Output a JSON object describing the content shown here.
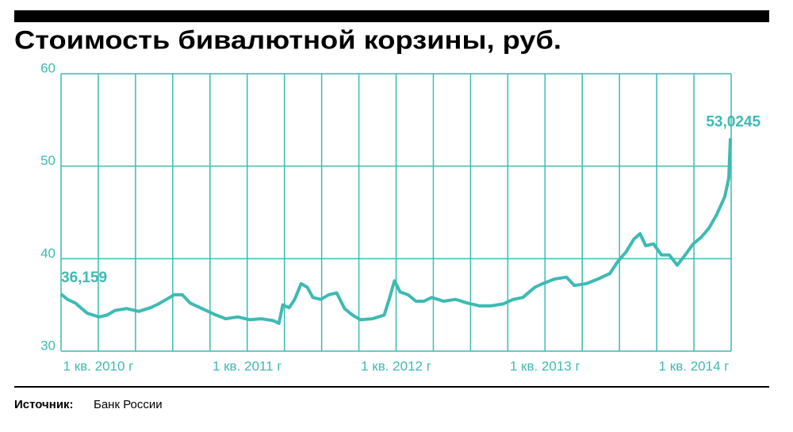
{
  "chart_data": {
    "type": "line",
    "title": "Стоимость бивалютной корзины, руб.",
    "source_label": "Источник:",
    "source": "Банк России",
    "xlim": [
      2009.75,
      2014.25
    ],
    "x_grid_step": 0.25,
    "xticks": [
      {
        "value": 2010,
        "label": "1 кв. 2010 г"
      },
      {
        "value": 2011,
        "label": "1 кв. 2011 г"
      },
      {
        "value": 2012,
        "label": "1 кв. 2012 г"
      },
      {
        "value": 2013,
        "label": "1 кв. 2013 г"
      },
      {
        "value": 2014,
        "label": "1 кв. 2014 г"
      }
    ],
    "ylim": [
      30,
      60
    ],
    "yticks": [
      30,
      40,
      50,
      60
    ],
    "grid": true,
    "series": [
      {
        "color": "#3dbab3",
        "x": [
          2009.75,
          2009.793,
          2009.846,
          2009.926,
          2010.005,
          2010.059,
          2010.112,
          2010.191,
          2010.271,
          2010.351,
          2010.404,
          2010.457,
          2010.511,
          2010.564,
          2010.617,
          2010.697,
          2010.777,
          2010.856,
          2010.936,
          2011.016,
          2011.096,
          2011.176,
          2011.213,
          2011.239,
          2011.282,
          2011.319,
          2011.362,
          2011.404,
          2011.441,
          2011.495,
          2011.548,
          2011.601,
          2011.654,
          2011.707,
          2011.761,
          2011.84,
          2011.92,
          2011.957,
          2011.989,
          2012.027,
          2012.08,
          2012.133,
          2012.186,
          2012.239,
          2012.319,
          2012.399,
          2012.479,
          2012.559,
          2012.638,
          2012.718,
          2012.787,
          2012.851,
          2012.931,
          2012.984,
          2013.064,
          2013.144,
          2013.197,
          2013.277,
          2013.356,
          2013.436,
          2013.489,
          2013.543,
          2013.596,
          2013.638,
          2013.676,
          2013.729,
          2013.782,
          2013.835,
          2013.888,
          2013.941,
          2013.995,
          2014.048,
          2014.101,
          2014.154,
          2014.207,
          2014.234,
          2014.245
        ],
        "values": [
          36.159,
          35.6,
          35.2,
          34.1,
          33.7,
          33.9,
          34.4,
          34.6,
          34.3,
          34.7,
          35.1,
          35.6,
          36.1,
          36.1,
          35.2,
          34.6,
          34.0,
          33.5,
          33.7,
          33.4,
          33.5,
          33.3,
          33.0,
          35.0,
          34.7,
          35.6,
          37.3,
          36.9,
          35.8,
          35.6,
          36.1,
          36.3,
          34.6,
          33.9,
          33.4,
          33.5,
          33.9,
          35.8,
          37.6,
          36.4,
          36.1,
          35.4,
          35.4,
          35.8,
          35.4,
          35.6,
          35.2,
          34.9,
          34.9,
          35.1,
          35.6,
          35.8,
          36.9,
          37.3,
          37.8,
          38.0,
          37.1,
          37.3,
          37.8,
          38.4,
          39.7,
          40.7,
          42.1,
          42.7,
          41.4,
          41.6,
          40.4,
          40.4,
          39.3,
          40.4,
          41.6,
          42.3,
          43.3,
          44.8,
          46.7,
          48.7,
          53.0245
        ],
        "value_labels": [
          "36,159",
          null,
          null,
          null,
          null,
          null,
          null,
          null,
          null,
          null,
          null,
          null,
          null,
          null,
          null,
          null,
          null,
          null,
          null,
          null,
          null,
          null,
          null,
          null,
          null,
          null,
          null,
          null,
          null,
          null,
          null,
          null,
          null,
          null,
          null,
          null,
          null,
          null,
          null,
          null,
          null,
          null,
          null,
          null,
          null,
          null,
          null,
          null,
          null,
          null,
          null,
          null,
          null,
          null,
          null,
          null,
          null,
          null,
          null,
          null,
          null,
          null,
          null,
          null,
          null,
          null,
          null,
          null,
          null,
          null,
          null,
          null,
          null,
          null,
          null,
          null,
          "53,0245"
        ]
      }
    ]
  }
}
